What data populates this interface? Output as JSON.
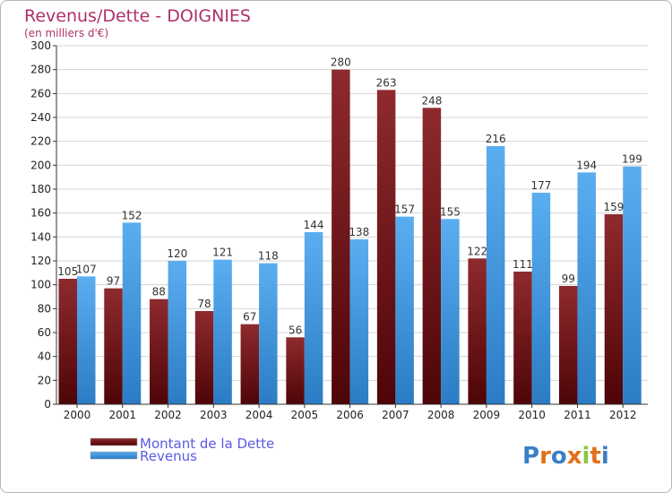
{
  "chart_data": {
    "type": "bar",
    "title": "Revenus/Dette - DOIGNIES",
    "subtitle": "(en milliers d'€)",
    "categories": [
      "2000",
      "2001",
      "2002",
      "2003",
      "2004",
      "2005",
      "2006",
      "2007",
      "2008",
      "2009",
      "2010",
      "2011",
      "2012"
    ],
    "series": [
      {
        "name": "Montant de la Dette",
        "color": "#7a1418",
        "values": [
          105,
          97,
          88,
          78,
          67,
          56,
          280,
          263,
          248,
          122,
          111,
          99,
          159
        ]
      },
      {
        "name": "Revenus",
        "color": "#3d95dc",
        "values": [
          107,
          152,
          120,
          121,
          118,
          144,
          138,
          157,
          155,
          216,
          177,
          194,
          199
        ]
      }
    ],
    "ylim": [
      0,
      300
    ],
    "ytick_step": 20,
    "grid": true,
    "legend_position": "bottom-left"
  },
  "logo": {
    "text": "Proxiti"
  }
}
